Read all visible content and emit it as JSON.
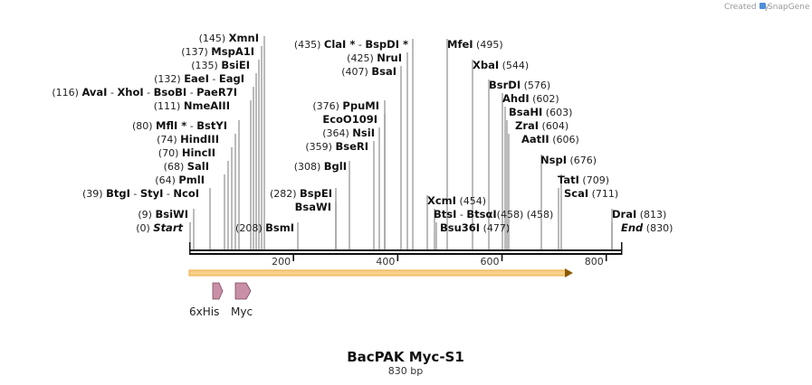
{
  "credit": {
    "text": "Created by",
    "brand": "SnapGene"
  },
  "title": "BacPAK Myc-S1",
  "length_label": "830 bp",
  "sequence_length": 830,
  "ruler": {
    "ticks": [
      200,
      400,
      600,
      800
    ]
  },
  "colors": {
    "backbone": "#111111",
    "orf_fill": "#f6a623",
    "orf_border": "#8a5a00",
    "feature_fill": "#c98fa6",
    "feature_border": "#7a4a5e"
  },
  "site_rows": [
    {
      "parts": [
        {
          "pos": "(145)",
          "name": "XmnI"
        }
      ]
    },
    {
      "parts": [
        {
          "pos": "(137)",
          "name": "MspA1I"
        }
      ]
    },
    {
      "parts": [
        {
          "pos": "(135)",
          "name": "BsiEI"
        }
      ]
    },
    {
      "parts": [
        {
          "pos": "(132)",
          "name": "EaeI"
        },
        {
          "sep": " - "
        },
        {
          "name": "EagI"
        }
      ]
    },
    {
      "parts": [
        {
          "pos": "(116)",
          "name": "AvaI"
        },
        {
          "sep": " - "
        },
        {
          "name": "XhoI"
        },
        {
          "sep": " - "
        },
        {
          "name": "BsoBI"
        },
        {
          "sep": " - "
        },
        {
          "name": "PaeR7I"
        }
      ]
    },
    {
      "parts": [
        {
          "pos": "(111)",
          "name": "NmeAIII"
        }
      ]
    },
    {
      "parts": [
        {
          "pos": "(80)",
          "name": "MflI *"
        },
        {
          "sep": " - "
        },
        {
          "name": "BstYI"
        }
      ]
    },
    {
      "parts": [
        {
          "pos": "(74)",
          "name": "HindIII"
        }
      ]
    },
    {
      "parts": [
        {
          "pos": "(70)",
          "name": "HincII"
        }
      ]
    },
    {
      "parts": [
        {
          "pos": "(68)",
          "name": "SalI"
        }
      ]
    },
    {
      "parts": [
        {
          "pos": "(64)",
          "name": "PmlI"
        }
      ]
    },
    {
      "parts": [
        {
          "pos": "(39)",
          "name": "BtgI"
        },
        {
          "sep": " - "
        },
        {
          "name": "StyI"
        },
        {
          "sep": " - "
        },
        {
          "name": "NcoI"
        }
      ]
    },
    {
      "parts": [
        {
          "pos": "(9)",
          "name": "BsiWI"
        }
      ]
    },
    {
      "parts": [
        {
          "pos": "(0)",
          "name": "Start"
        }
      ]
    },
    {
      "parts": [
        {
          "pos": "(208)",
          "name": "BsmI"
        }
      ]
    },
    {
      "parts": [
        {
          "pos": "(282)",
          "name": "BspEI"
        }
      ]
    },
    {
      "parts": [
        {
          "name": "BsaWI"
        }
      ]
    },
    {
      "parts": [
        {
          "pos": "(308)",
          "name": "BglI"
        }
      ]
    },
    {
      "parts": [
        {
          "pos": "(359)",
          "name": "BseRI"
        }
      ]
    },
    {
      "parts": [
        {
          "pos": "(364)",
          "name": "NsiI"
        }
      ]
    },
    {
      "parts": [
        {
          "name": "EcoO109I"
        }
      ]
    },
    {
      "parts": [
        {
          "pos": "(376)",
          "name": "PpuMI"
        }
      ]
    },
    {
      "parts": [
        {
          "pos": "(407)",
          "name": "BsaI"
        }
      ]
    },
    {
      "parts": [
        {
          "pos": "(425)",
          "name": "NruI"
        }
      ]
    },
    {
      "parts": [
        {
          "pos": "(435)",
          "name": "ClaI *"
        },
        {
          "sep": " - "
        },
        {
          "name": "BspDI *"
        }
      ]
    },
    {
      "parts": [
        {
          "name": "MfeI",
          "pos": "(495)"
        }
      ]
    },
    {
      "parts": [
        {
          "name": "XbaI",
          "pos": "(544)"
        }
      ]
    },
    {
      "parts": [
        {
          "name": "BsrDI",
          "pos": "(576)"
        }
      ]
    },
    {
      "parts": [
        {
          "name": "AhdI",
          "pos": "(602)"
        }
      ]
    },
    {
      "parts": [
        {
          "name": "BsaHI",
          "pos": "(603)"
        }
      ]
    },
    {
      "parts": [
        {
          "name": "ZraI",
          "pos": "(604)"
        }
      ]
    },
    {
      "parts": [
        {
          "name": "AatII",
          "pos": "(606)"
        }
      ]
    },
    {
      "parts": [
        {
          "name": "NspI",
          "pos": "(676)"
        }
      ]
    },
    {
      "parts": [
        {
          "name": "TatI",
          "pos": "(709)"
        }
      ]
    },
    {
      "parts": [
        {
          "name": "ScaI",
          "pos": "(711)"
        }
      ]
    },
    {
      "parts": [
        {
          "name": "XcmI",
          "pos": "(454)"
        }
      ]
    },
    {
      "parts": [
        {
          "name": "BtsI"
        },
        {
          "sep": " - "
        },
        {
          "name": "BtsαI"
        },
        {
          "pos": "(458)"
        }
      ]
    },
    {
      "parts": [
        {
          "name": "Bsu36I",
          "pos": "(477)"
        }
      ]
    },
    {
      "parts": [
        {
          "name": "DraI",
          "pos": "(813)"
        }
      ]
    },
    {
      "parts": [
        {
          "name": "End",
          "pos": "(830)"
        }
      ]
    }
  ],
  "features": [
    {
      "name": "6xHis"
    },
    {
      "name": "Myc"
    }
  ]
}
